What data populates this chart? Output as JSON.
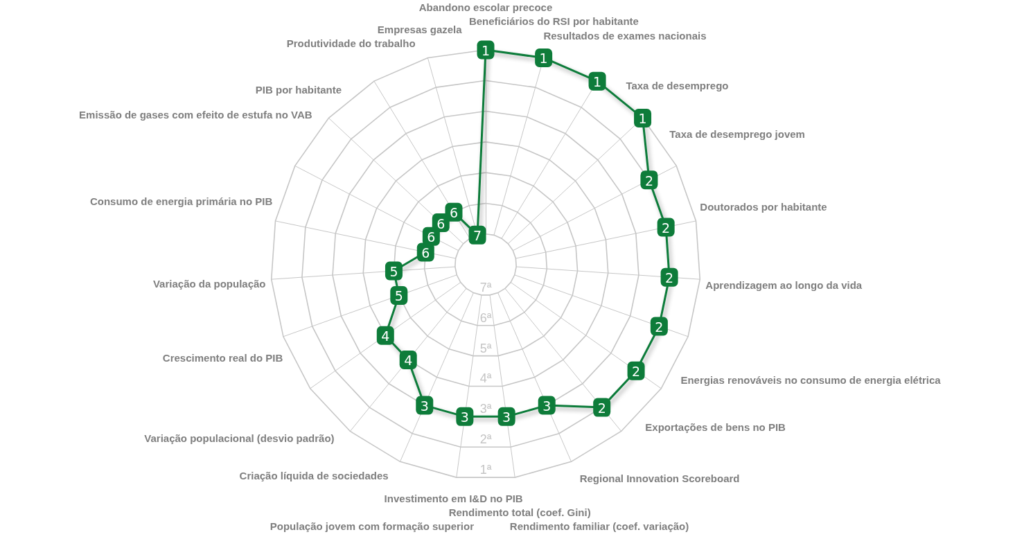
{
  "chart_data": {
    "type": "radar",
    "categories": [
      "Abandono escolar precoce",
      "Beneficiários do RSI por habitante",
      "Resultados de exames nacionais",
      "Taxa de desemprego",
      "Taxa de desemprego jovem",
      "Doutorados por habitante",
      "Aprendizagem ao longo da vida",
      "Energias renováveis no consumo de energia elétrica",
      "Exportações de bens no PIB",
      "Regional Innovation Scoreboard",
      "Rendimento familiar (coef. variação)",
      "Rendimento total (coef. Gini)",
      "Investimento em I&D no PIB",
      "População jovem com formação superior",
      "Criação líquida de sociedades",
      "Variação populacional (desvio padrão)",
      "Crescimento real do PIB",
      "Variação da população",
      "Consumo de energia primária no PIB",
      "Emissão de gases com efeito de estufa no VAB",
      "PIB por habitante",
      "Produtividade do trabalho",
      "Empresas gazela"
    ],
    "series": [
      {
        "color": "#0e7c3a",
        "values": [
          1,
          1,
          1,
          1,
          2,
          2,
          2,
          2,
          2,
          2,
          3,
          3,
          3,
          3,
          4,
          4,
          5,
          5,
          6,
          6,
          6,
          6,
          7
        ]
      }
    ],
    "ylim": [
      8,
      1
    ],
    "yticks": [
      {
        "value": 7,
        "label": "7ª"
      },
      {
        "value": 6,
        "label": "6ª"
      },
      {
        "value": 5,
        "label": "5ª"
      },
      {
        "value": 4,
        "label": "4ª"
      },
      {
        "value": 3,
        "label": "3ª"
      },
      {
        "value": 2,
        "label": "2ª"
      },
      {
        "value": 1,
        "label": "1ª"
      }
    ],
    "grid": true,
    "marker": "square",
    "data_labels": true
  }
}
